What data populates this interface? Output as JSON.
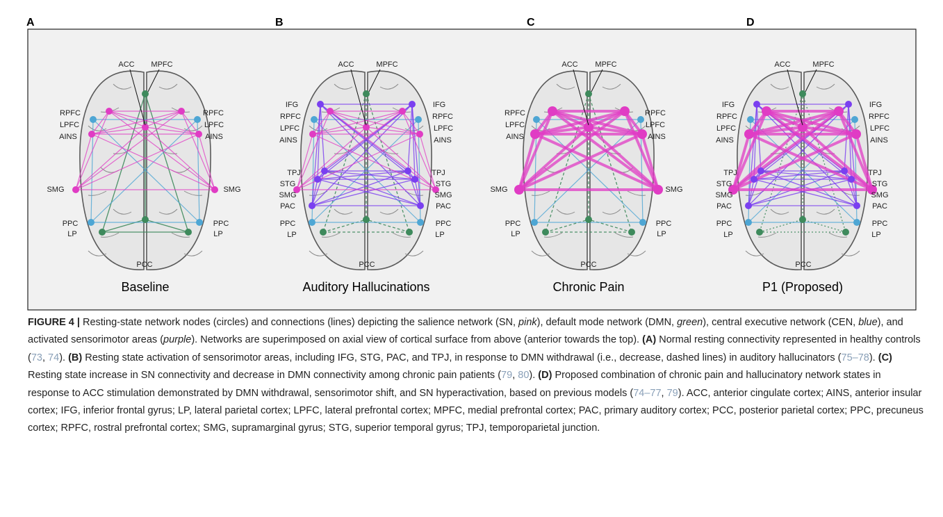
{
  "panels": [
    {
      "letter": "A",
      "caption": "Baseline",
      "labels": [
        "ACC",
        "MPFC",
        "RPFC",
        "RPFC",
        "LPFC",
        "LPFC",
        "AINS",
        "AINS",
        "SMG",
        "SMG",
        "PPC",
        "PPC",
        "LP",
        "LP",
        "PCC"
      ]
    },
    {
      "letter": "B",
      "caption": "Auditory Hallucinations",
      "labels": [
        "ACC",
        "MPFC",
        "IFG",
        "IFG",
        "RPFC",
        "RPFC",
        "LPFC",
        "LPFC",
        "AINS",
        "AINS",
        "TPJ",
        "TPJ",
        "STG",
        "STG",
        "SMG",
        "SMG",
        "PAC",
        "PAC",
        "PPC",
        "PPC",
        "LP",
        "LP",
        "PCC"
      ]
    },
    {
      "letter": "C",
      "caption": "Chronic Pain",
      "labels": [
        "ACC",
        "MPFC",
        "RPFC",
        "RPFC",
        "LPFC",
        "LPFC",
        "AINS",
        "AINS",
        "SMG",
        "SMG",
        "PPC",
        "PPC",
        "LP",
        "LP",
        "PCC"
      ]
    },
    {
      "letter": "D",
      "caption": "P1 (Proposed)",
      "labels": [
        "ACC",
        "MPFC",
        "IFG",
        "IFG",
        "RPFC",
        "RPFC",
        "LPFC",
        "LPFC",
        "AINS",
        "AINS",
        "TPJ",
        "TPJ",
        "STG",
        "STG",
        "SMG",
        "SMG",
        "PAC",
        "PAC",
        "PPC",
        "PPC",
        "LP",
        "LP",
        "PCC"
      ]
    }
  ],
  "caption": {
    "segments": [
      {
        "text": "FIGURE 4 |",
        "style": "bold"
      },
      {
        "text": " Resting-state network nodes (circles) and connections (lines) depicting the salience network (SN, "
      },
      {
        "text": "pink",
        "style": "italic"
      },
      {
        "text": "), default mode network (DMN, "
      },
      {
        "text": "green",
        "style": "italic"
      },
      {
        "text": "), central executive network (CEN, "
      },
      {
        "text": "blue",
        "style": "italic"
      },
      {
        "text": "), and activated sensorimotor areas ("
      },
      {
        "text": "purple",
        "style": "italic"
      },
      {
        "text": "). Networks are superimposed on axial view of cortical surface from above (anterior towards the top). "
      },
      {
        "text": "(A)",
        "style": "bold"
      },
      {
        "text": " Normal resting connectivity represented in healthy controls ("
      },
      {
        "text": "73",
        "style": "ref"
      },
      {
        "text": ", "
      },
      {
        "text": "74",
        "style": "ref"
      },
      {
        "text": "). "
      },
      {
        "text": "(B)",
        "style": "bold"
      },
      {
        "text": " Resting state activation of sensorimotor areas, including IFG, STG, PAC, and TPJ, in response to DMN withdrawal (i.e., decrease, dashed lines) in auditory hallucinators ("
      },
      {
        "text": "75–78",
        "style": "ref"
      },
      {
        "text": "). "
      },
      {
        "text": "(C)",
        "style": "bold"
      },
      {
        "text": " Resting state increase in SN connectivity and decrease in DMN connectivity among chronic pain patients ("
      },
      {
        "text": "79",
        "style": "ref"
      },
      {
        "text": ", "
      },
      {
        "text": "80",
        "style": "ref"
      },
      {
        "text": "). "
      },
      {
        "text": "(D)",
        "style": "bold"
      },
      {
        "text": " Proposed combination of chronic pain and hallucinatory network states in response to ACC stimulation demonstrated by DMN withdrawal, sensorimotor shift, and SN hyperactivation, based on previous models ("
      },
      {
        "text": "74–77",
        "style": "ref"
      },
      {
        "text": ", "
      },
      {
        "text": "79",
        "style": "ref"
      },
      {
        "text": "). ACC, anterior cingulate cortex; AINS, anterior insular cortex; IFG, inferior frontal gyrus; LP, lateral parietal cortex; LPFC, lateral prefrontal cortex; MPFC, medial prefrontal cortex; PAC, primary auditory cortex; PCC, posterior parietal cortex; PPC, precuneus cortex; RPFC, rostral prefrontal cortex; SMG, supramarginal gyrus; STG, superior temporal gyrus; TPJ, temporoparietal junction."
      }
    ]
  }
}
